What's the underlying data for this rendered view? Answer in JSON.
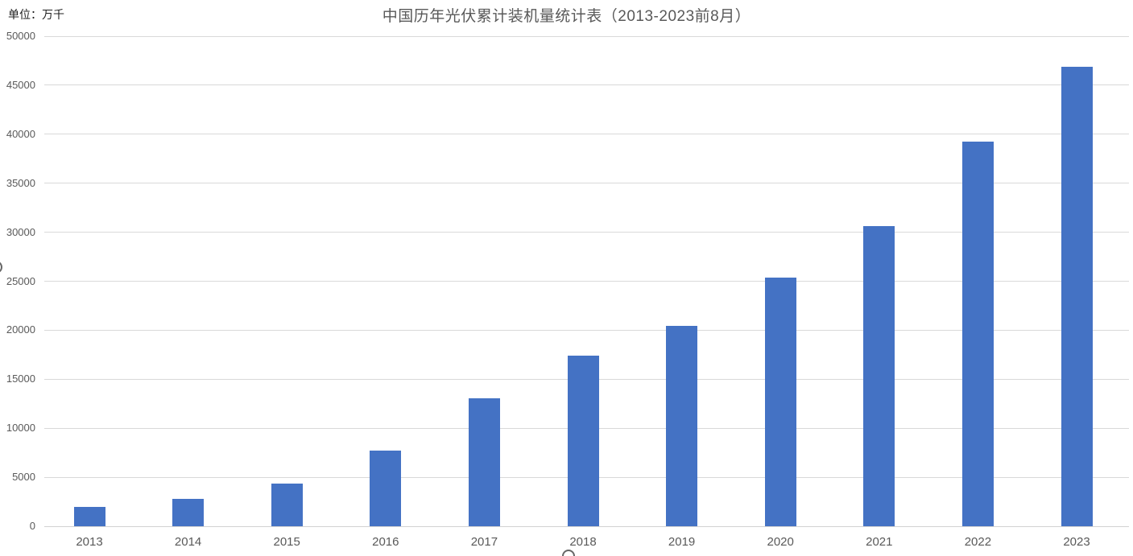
{
  "unit_label": "单位：万千",
  "chart_data": {
    "type": "bar",
    "title": "中国历年光伏累计装机量统计表（2013-2023前8月）",
    "unit": "单位：万千",
    "xlabel": "",
    "ylabel": "",
    "categories": [
      "2013",
      "2014",
      "2015",
      "2016",
      "2017",
      "2018",
      "2019",
      "2020",
      "2021",
      "2022",
      "2023"
    ],
    "values": [
      1942,
      2805,
      4318,
      7742,
      13025,
      17446,
      20430,
      25343,
      30599,
      39261,
      46900
    ],
    "ylim": [
      0,
      50000
    ],
    "ytick_step": 5000,
    "ytick_labels": [
      "0",
      "5000",
      "10000",
      "15000",
      "20000",
      "25000",
      "30000",
      "35000",
      "40000",
      "45000",
      "50000"
    ],
    "grid": true,
    "legend": "none",
    "bar_color": "#4472C4",
    "gridline_color": "#D9D9D9",
    "label_color": "#595959",
    "title_color": "#595959"
  }
}
